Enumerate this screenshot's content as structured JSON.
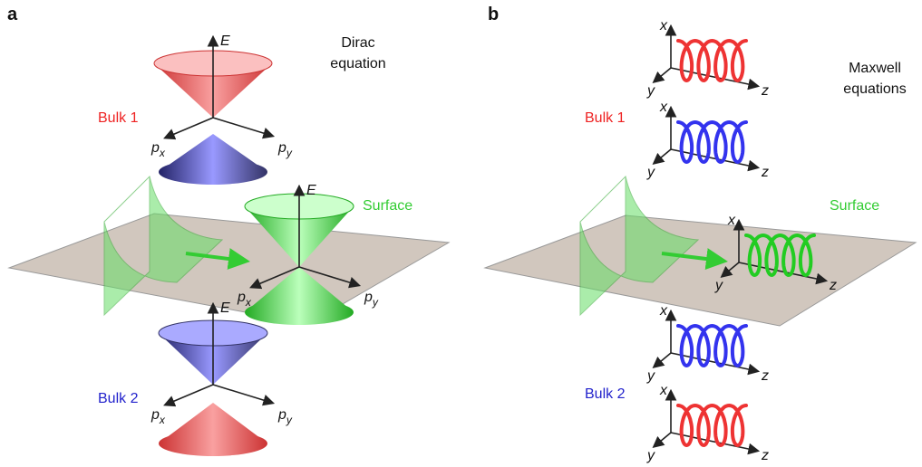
{
  "panels": [
    {
      "label": "a",
      "title": [
        "Dirac",
        "equation"
      ],
      "bulk_1": "Bulk 1",
      "surface": "Surface",
      "bulk_2": "Bulk 2",
      "axes": {
        "energy": "E",
        "momentum": "p",
        "sub_x": "x",
        "sub_y": "y"
      }
    },
    {
      "label": "b",
      "title": [
        "Maxwell",
        "equations"
      ],
      "bulk_1": "Bulk 1",
      "surface": "Surface",
      "bulk_2": "Bulk 2",
      "axes": {
        "x": "x",
        "y": "y",
        "z": "z"
      }
    }
  ]
}
